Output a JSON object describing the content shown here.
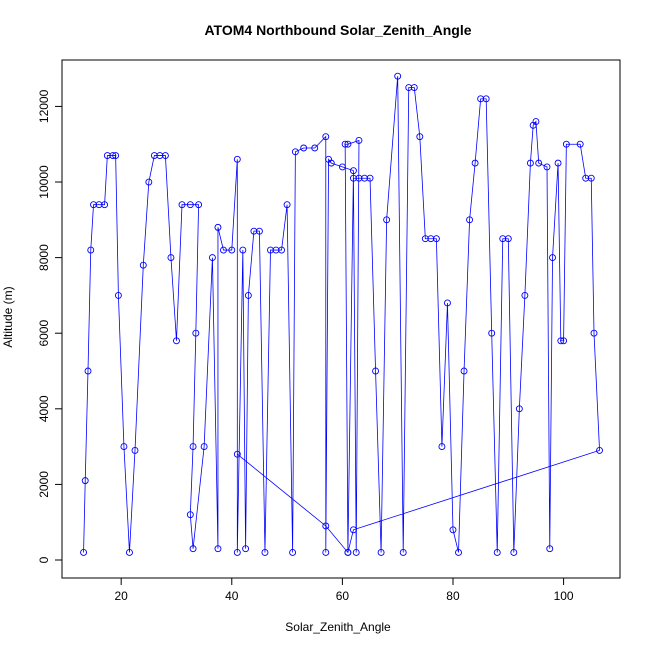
{
  "chart_data": {
    "type": "line",
    "title": "ATOM4 Northbound Solar_Zenith_Angle",
    "xlabel": "Solar_Zenith_Angle",
    "ylabel": "Altitude (m)",
    "xlim": [
      9.3,
      110.2
    ],
    "ylim": [
      -476,
      13228
    ],
    "xticks": [
      20,
      40,
      60,
      80,
      100
    ],
    "yticks": [
      0,
      2000,
      4000,
      6000,
      8000,
      10000,
      12000
    ],
    "series": [
      {
        "name": "Altitude",
        "color": "#0000ff",
        "x": [
          13.2,
          13.5,
          14,
          14.5,
          15,
          16,
          17,
          17.5,
          18.5,
          19,
          19.5,
          20.5,
          21.5,
          22.5,
          24,
          25,
          26,
          27,
          28,
          29,
          30,
          31,
          32.5,
          34,
          33.5,
          33,
          32.5,
          33,
          35,
          36.5,
          37.5,
          37.5,
          38.5,
          40,
          41,
          41,
          42,
          42.5,
          43,
          44,
          45,
          46,
          47,
          48,
          49,
          50,
          51,
          51.5,
          53,
          55,
          57,
          57,
          57.5,
          58,
          60,
          62,
          61,
          60.5,
          61,
          63,
          62.5,
          62,
          63,
          64,
          65,
          66,
          67,
          68,
          70,
          71,
          72,
          73,
          74,
          75,
          76,
          77,
          78,
          79,
          80,
          81,
          82,
          83,
          84,
          85,
          86,
          87,
          88,
          89,
          90,
          91,
          92,
          93,
          94,
          94.5,
          95,
          95.5,
          97,
          97.5,
          98,
          99,
          99.5,
          100,
          100.5,
          103,
          104,
          105,
          105.5,
          106.5,
          62,
          61,
          57,
          41
        ],
        "values": [
          200,
          2100,
          5000,
          8200,
          9400,
          9400,
          9400,
          10700,
          10700,
          10700,
          7000,
          3000,
          200,
          2900,
          7800,
          10000,
          10700,
          10700,
          10700,
          8000,
          5800,
          9400,
          9400,
          9400,
          6000,
          3000,
          1200,
          300,
          3000,
          8000,
          300,
          8800,
          8200,
          8200,
          10600,
          200,
          8200,
          300,
          7000,
          8700,
          8700,
          200,
          8200,
          8200,
          8200,
          9400,
          200,
          10800,
          10900,
          10900,
          11200,
          200,
          10600,
          10500,
          10400,
          10300,
          200,
          11000,
          11000,
          11100,
          200,
          10100,
          10100,
          10100,
          10100,
          5000,
          200,
          9000,
          12800,
          200,
          12500,
          12500,
          11200,
          8500,
          8500,
          8500,
          3000,
          6800,
          800,
          200,
          5000,
          9000,
          10500,
          12200,
          12200,
          6000,
          200,
          8500,
          8500,
          200,
          4000,
          7000,
          10500,
          11500,
          11600,
          10500,
          10400,
          300,
          8000,
          10500,
          5800,
          5800,
          11000,
          11000,
          10100,
          10100,
          6000,
          2900,
          800,
          200,
          900,
          2800
        ]
      }
    ]
  }
}
